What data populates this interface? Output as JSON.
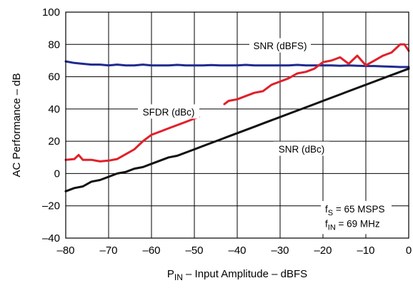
{
  "chart_data": {
    "type": "line",
    "xlabel": {
      "main": "P",
      "sub": "IN",
      "rest": " – Input Amplitude – dBFS"
    },
    "ylabel": "AC Performance – dB",
    "xlim": [
      -80,
      0
    ],
    "ylim": [
      -40,
      100
    ],
    "xticks": [
      -80,
      -70,
      -60,
      -50,
      -40,
      -30,
      -20,
      -10,
      0
    ],
    "xtick_labels": [
      "–80",
      "–70",
      "–60",
      "–50",
      "–40",
      "–30",
      "–20",
      "–10",
      "0"
    ],
    "yticks": [
      -40,
      -20,
      0,
      20,
      40,
      60,
      80,
      100
    ],
    "ytick_labels": [
      "–40",
      "–20",
      "0",
      "20",
      "40",
      "60",
      "80",
      "100"
    ],
    "grid": true,
    "series": [
      {
        "name": "SNR (dBFS)",
        "color": "#1f2a8f",
        "x": [
          -80,
          -78,
          -76,
          -74,
          -72,
          -70,
          -68,
          -66,
          -64,
          -62,
          -60,
          -58,
          -56,
          -54,
          -52,
          -50,
          -48,
          -46,
          -44,
          -42,
          -40,
          -38,
          -36,
          -34,
          -32,
          -30,
          -28,
          -26,
          -24,
          -22,
          -20,
          -18,
          -16,
          -14,
          -12,
          -10,
          -8,
          -6,
          -4,
          -2,
          0
        ],
        "y": [
          69.5,
          68.5,
          68,
          67.5,
          67.5,
          67,
          67.5,
          67,
          67,
          67.5,
          67,
          67,
          67,
          67.3,
          67,
          67,
          67,
          67.2,
          67,
          67,
          67,
          67.3,
          67,
          67,
          67,
          67,
          67,
          67.3,
          67,
          67,
          67,
          67,
          66.8,
          67,
          66.8,
          66.6,
          66.6,
          66.4,
          66.2,
          66,
          66
        ]
      },
      {
        "name": "SFDR (dBc)",
        "color": "#e0202a",
        "segments": [
          {
            "x": [
              -80,
              -78,
              -77,
              -76,
              -74,
              -72,
              -70,
              -68,
              -66,
              -64,
              -62,
              -60,
              -58,
              -56,
              -54,
              -52,
              -50,
              -49
            ],
            "y": [
              8.5,
              9,
              11.5,
              8.5,
              8.5,
              7.5,
              8,
              9,
              12,
              15,
              20,
              24,
              26,
              28,
              30,
              32,
              34,
              35
            ]
          },
          {
            "x": [
              -43,
              -42,
              -40,
              -38,
              -36,
              -34,
              -32,
              -30,
              -28,
              -26,
              -24,
              -22,
              -20,
              -18,
              -16,
              -14,
              -12,
              -10,
              -8,
              -6,
              -4,
              -2,
              -1,
              0
            ],
            "y": [
              43,
              45,
              46,
              48,
              50,
              51,
              55,
              57,
              59,
              62,
              63,
              65,
              69,
              70,
              72,
              68,
              73,
              67,
              70,
              73,
              75,
              80,
              80,
              76
            ]
          }
        ]
      },
      {
        "name": "SNR (dBc)",
        "color": "#111111",
        "x": [
          -80,
          -78,
          -76,
          -74,
          -72,
          -70,
          -68,
          -66,
          -64,
          -62,
          -60,
          -58,
          -56,
          -54,
          -52,
          -50,
          -48,
          -46,
          -44,
          -42,
          -40,
          -38,
          -36,
          -34,
          -32,
          -30,
          -28,
          -26,
          -24,
          -22,
          -20,
          -18,
          -16,
          -14,
          -12,
          -10,
          -8,
          -6,
          -4,
          -2,
          0
        ],
        "y": [
          -11,
          -9,
          -8,
          -5,
          -4,
          -2,
          0,
          1,
          3,
          4,
          6,
          8,
          10,
          11,
          13,
          15,
          17,
          19,
          21,
          23,
          25,
          27,
          29,
          31,
          33,
          35,
          37,
          39,
          41,
          43,
          45,
          47,
          49,
          51,
          53,
          55,
          57,
          59,
          61,
          63,
          65
        ]
      }
    ],
    "series_labels": [
      {
        "text": "SNR (dBFS)",
        "x": -30,
        "y": 79
      },
      {
        "text": "SFDR (dBc)",
        "x": -56,
        "y": 38
      },
      {
        "text": "SNR (dBc)",
        "x": -25,
        "y": 15
      }
    ],
    "annotations": [
      {
        "main": "f",
        "sub": "S",
        "rest": " = 65 MSPS",
        "x": -19.5,
        "y": -22
      },
      {
        "main": "f",
        "sub": "IN",
        "rest": " = 69 MHz",
        "x": -19.5,
        "y": -31
      }
    ]
  }
}
